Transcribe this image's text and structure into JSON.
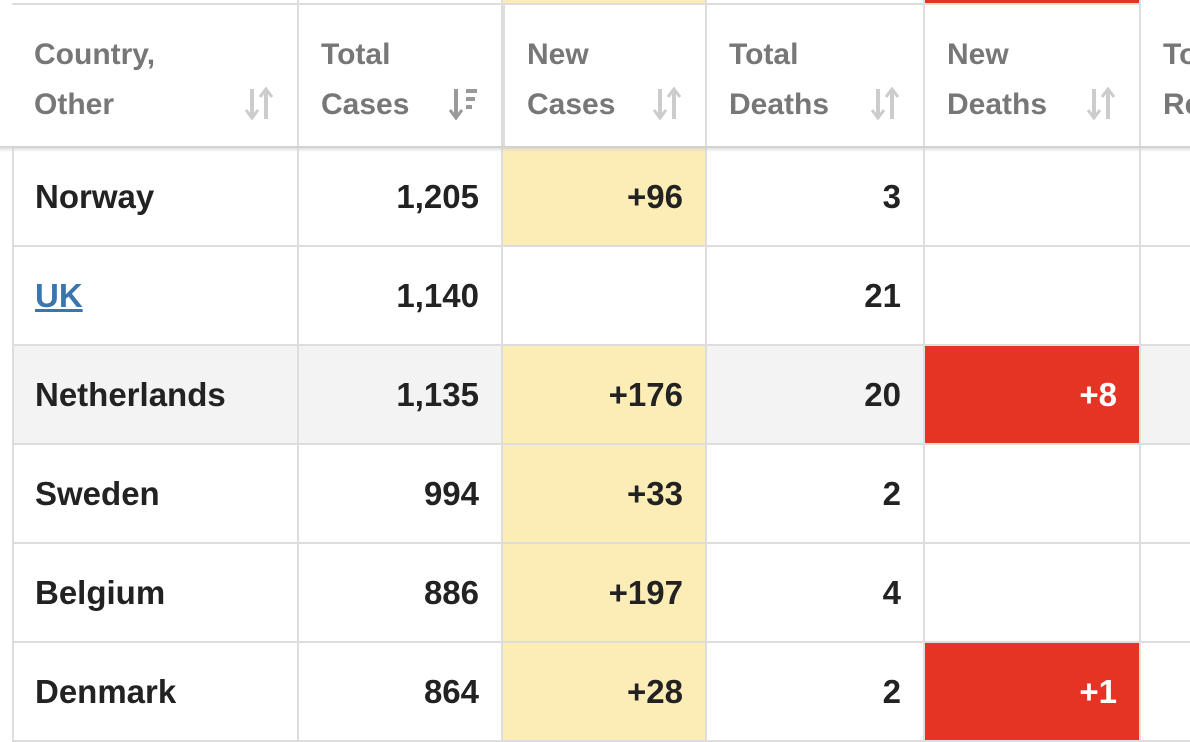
{
  "table": {
    "columns": [
      "Country,\nOther",
      "Total\nCases",
      "New\nCases",
      "Total\nDeaths",
      "New\nDeaths",
      "Total\nRecovered"
    ],
    "rows": [
      {
        "country": "Norway",
        "total_cases": "1,205",
        "new_cases": "+96",
        "total_deaths": "3"
      },
      {
        "country": "UK",
        "link": true,
        "total_cases": "1,140",
        "total_deaths": "21"
      },
      {
        "country": "Netherlands",
        "total_cases": "1,135",
        "new_cases": "+176",
        "total_deaths": "20",
        "new_deaths": "+8"
      },
      {
        "country": "Sweden",
        "total_cases": "994",
        "new_cases": "+33",
        "total_deaths": "2"
      },
      {
        "country": "Belgium",
        "total_cases": "886",
        "new_cases": "+197",
        "total_deaths": "4"
      },
      {
        "country": "Denmark",
        "total_cases": "864",
        "new_cases": "+28",
        "total_deaths": "2",
        "new_deaths": "+1"
      }
    ]
  }
}
